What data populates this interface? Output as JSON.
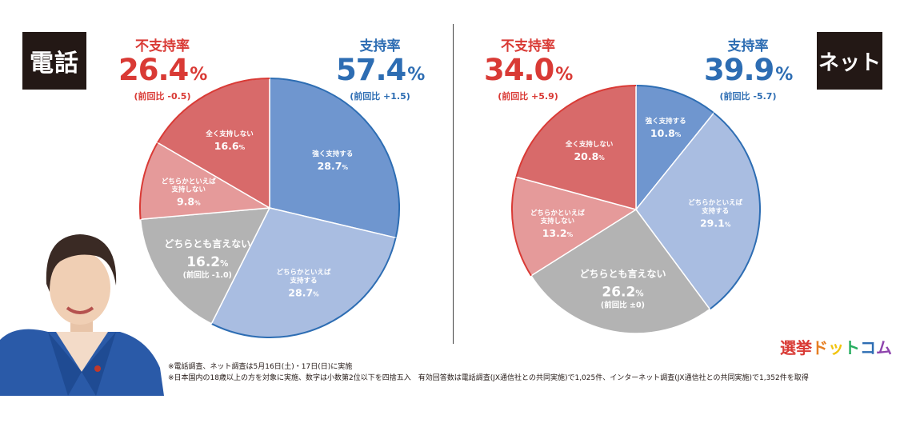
{
  "badges": {
    "phone": "電話",
    "net": "ネット"
  },
  "phone": {
    "disapprove": {
      "label": "不支持率",
      "value": "26.4",
      "unit": "%",
      "change": "(前回比 -0.5)"
    },
    "approve": {
      "label": "支持率",
      "value": "57.4",
      "unit": "%",
      "change": "(前回比 +1.5)"
    }
  },
  "net": {
    "disapprove": {
      "label": "不支持率",
      "value": "34.0",
      "unit": "%",
      "change": "(前回比 +5.9)"
    },
    "approve": {
      "label": "支持率",
      "value": "39.9",
      "unit": "%",
      "change": "(前回比 -5.7)"
    }
  },
  "chart_data": [
    {
      "type": "pie",
      "title": "電話",
      "slices": [
        {
          "label": "強く支持する",
          "value": 28.7,
          "display": "28.7",
          "color": "#6f96cf"
        },
        {
          "label": "どちらかといえば支持する",
          "value": 28.7,
          "display": "28.7",
          "color": "#a9bde1"
        },
        {
          "label": "どちらとも言えない",
          "value": 16.2,
          "display": "16.2",
          "note": "(前回比 -1.0)",
          "color": "#b3b3b3"
        },
        {
          "label": "どちらかといえば支持しない",
          "value": 9.8,
          "display": "9.8",
          "color": "#e59a9a"
        },
        {
          "label": "全く支持しない",
          "value": 16.6,
          "display": "16.6",
          "color": "#d86a6a"
        }
      ]
    },
    {
      "type": "pie",
      "title": "ネット",
      "slices": [
        {
          "label": "強く支持する",
          "value": 10.8,
          "display": "10.8",
          "color": "#6f96cf"
        },
        {
          "label": "どちらかといえば支持する",
          "value": 29.1,
          "display": "29.1",
          "color": "#a9bde1"
        },
        {
          "label": "どちらとも言えない",
          "value": 26.2,
          "display": "26.2",
          "note": "(前回比 ±0)",
          "color": "#b3b3b3"
        },
        {
          "label": "どちらかといえば支持しない",
          "value": 13.2,
          "display": "13.2",
          "color": "#e59a9a"
        },
        {
          "label": "全く支持しない",
          "value": 20.8,
          "display": "20.8",
          "color": "#d86a6a"
        }
      ]
    }
  ],
  "percent_sign": "%",
  "notes": [
    "※電話調査、ネット調査は5月16日(土)・17日(日)に実施",
    "※日本国内の18歳以上の方を対象に実施、数字は小数第2位以下を四捨五入　有効回答数は電話調査(JX通信社との共同実施)で1,025件、インターネット調査(JX通信社との共同実施)で1,352件を取得"
  ],
  "logo": "選挙ドットコム",
  "colors": {
    "approve": "#2d6db3",
    "disapprove": "#d93a35",
    "approve_border": "#2d6db3",
    "disapprove_border": "#d93a35"
  }
}
